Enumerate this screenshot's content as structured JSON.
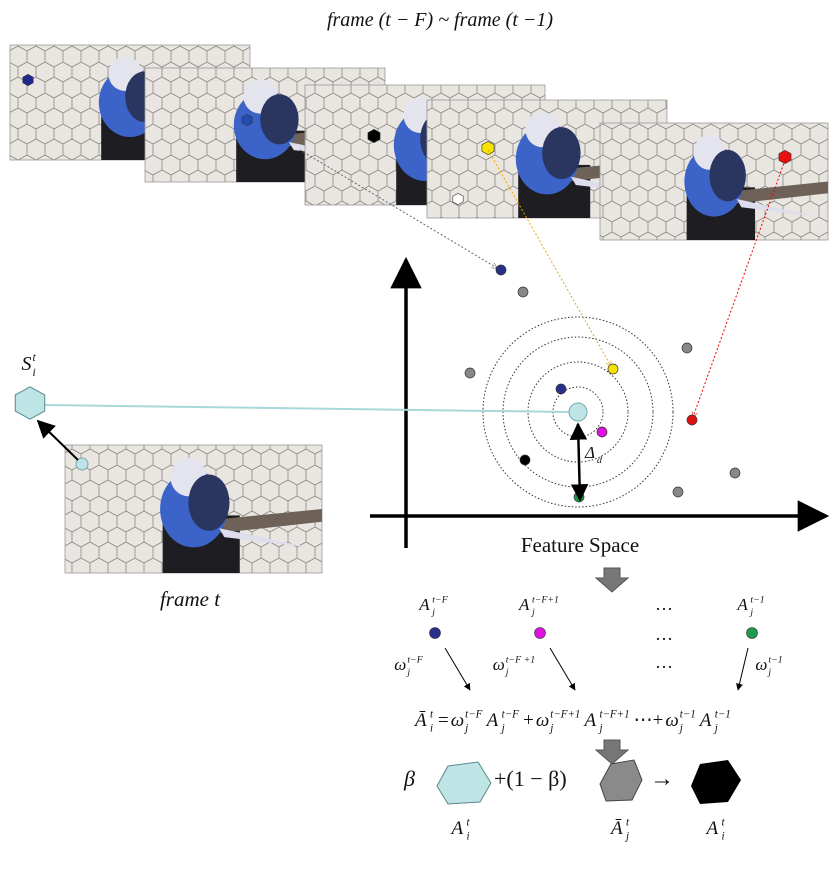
{
  "header": {
    "title": "frame (t − F)   ~   frame (t −1)"
  },
  "current_frame": {
    "label": "frame t",
    "superpixel": {
      "symbol": "S",
      "sub": "i",
      "sup": "t"
    }
  },
  "feature_space": {
    "axis_label": "Feature Space",
    "distance": {
      "symbol": "Δ",
      "sub": "d"
    }
  },
  "anchors": {
    "ellipsis": "…",
    "items": [
      {
        "label": {
          "symbol": "A",
          "sub": "j",
          "sup": "t−F"
        },
        "weight": {
          "symbol": "ω",
          "sub": "j",
          "sup": "t−F"
        }
      },
      {
        "label": {
          "symbol": "A",
          "sub": "j",
          "sup": "t−F+1"
        },
        "weight": {
          "symbol": "ω",
          "sub": "j",
          "sup": "t−F +1"
        }
      },
      {
        "label": {
          "symbol": "A",
          "sub": "j",
          "sup": "t−1"
        },
        "weight": {
          "symbol": "ω",
          "sub": "j",
          "sup": "t−1"
        }
      }
    ]
  },
  "equation": [
    {
      "symbol": "Ā",
      "sub": "i",
      "sup": "t"
    },
    {
      "text": " = "
    },
    {
      "symbol": "ω",
      "sub": "j",
      "sup": "t−F"
    },
    {
      "symbol": "A",
      "sub": "j",
      "sup": "t−F"
    },
    {
      "text": " +"
    },
    {
      "symbol": "ω",
      "sub": "j",
      "sup": "t−F+1"
    },
    {
      "symbol": "A",
      "sub": "j",
      "sup": "t−F+1"
    },
    {
      "text": "⋯+"
    },
    {
      "symbol": "ω",
      "sub": "j",
      "sup": "t−1"
    },
    {
      "symbol": "A",
      "sub": "j",
      "sup": "t−1"
    }
  ],
  "update": {
    "beta": "β",
    "plus": "+(1 − β)",
    "arrow": "→",
    "labels": [
      {
        "symbol": "A",
        "sub": "i",
        "sup": "t"
      },
      {
        "symbol": "Ā",
        "sub": "j",
        "sup": "t"
      },
      {
        "symbol": "A",
        "sub": "i",
        "sup": "t"
      }
    ]
  }
}
